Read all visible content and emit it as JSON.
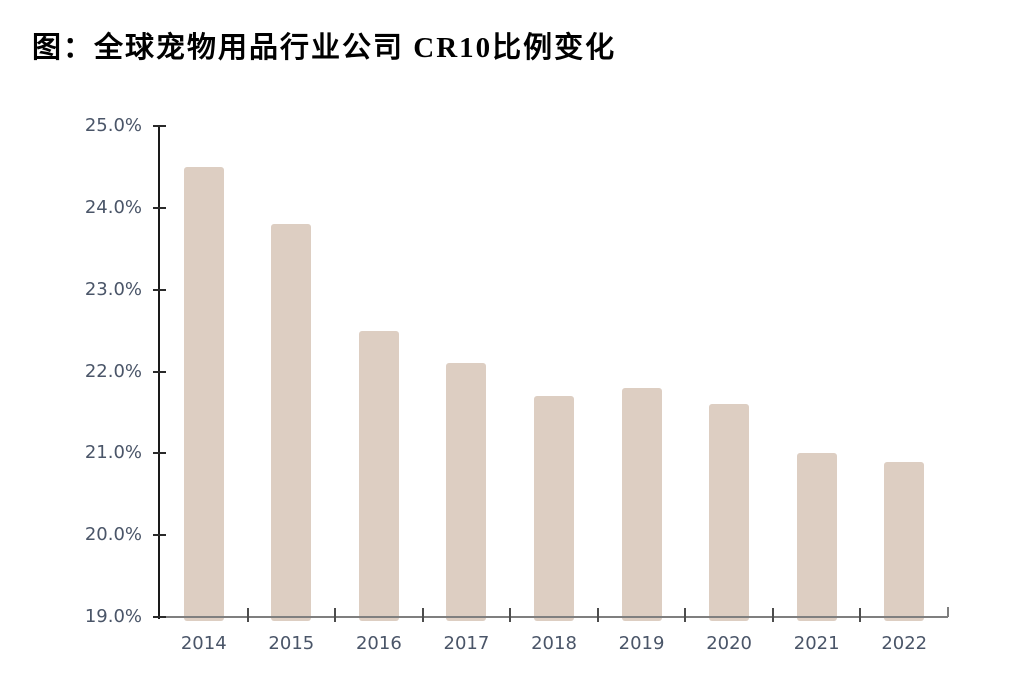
{
  "chart_data": {
    "type": "bar",
    "title": "图：全球宠物用品行业公司 CR10比例变化",
    "categories": [
      "2014",
      "2015",
      "2016",
      "2017",
      "2018",
      "2019",
      "2020",
      "2021",
      "2022"
    ],
    "values": [
      24.5,
      23.8,
      22.5,
      22.1,
      21.7,
      21.8,
      21.6,
      21.0,
      20.9
    ],
    "values_unit": "%",
    "xlabel": "",
    "ylabel": "",
    "ylim": [
      19.0,
      25.0
    ],
    "y_tick_step": 1.0,
    "y_tick_labels": [
      "25.0%",
      "24.0%",
      "23.0%",
      "22.0%",
      "21.0%",
      "20.0%",
      "19.0%"
    ],
    "grid": false,
    "legend": "none",
    "colors": {
      "bar": "#ddcec2",
      "axis_label_text": "#4a5568",
      "y_axis_line": "#1a1a1a",
      "x_axis_line": "#7f7f7f",
      "title_text": "#000000"
    }
  }
}
